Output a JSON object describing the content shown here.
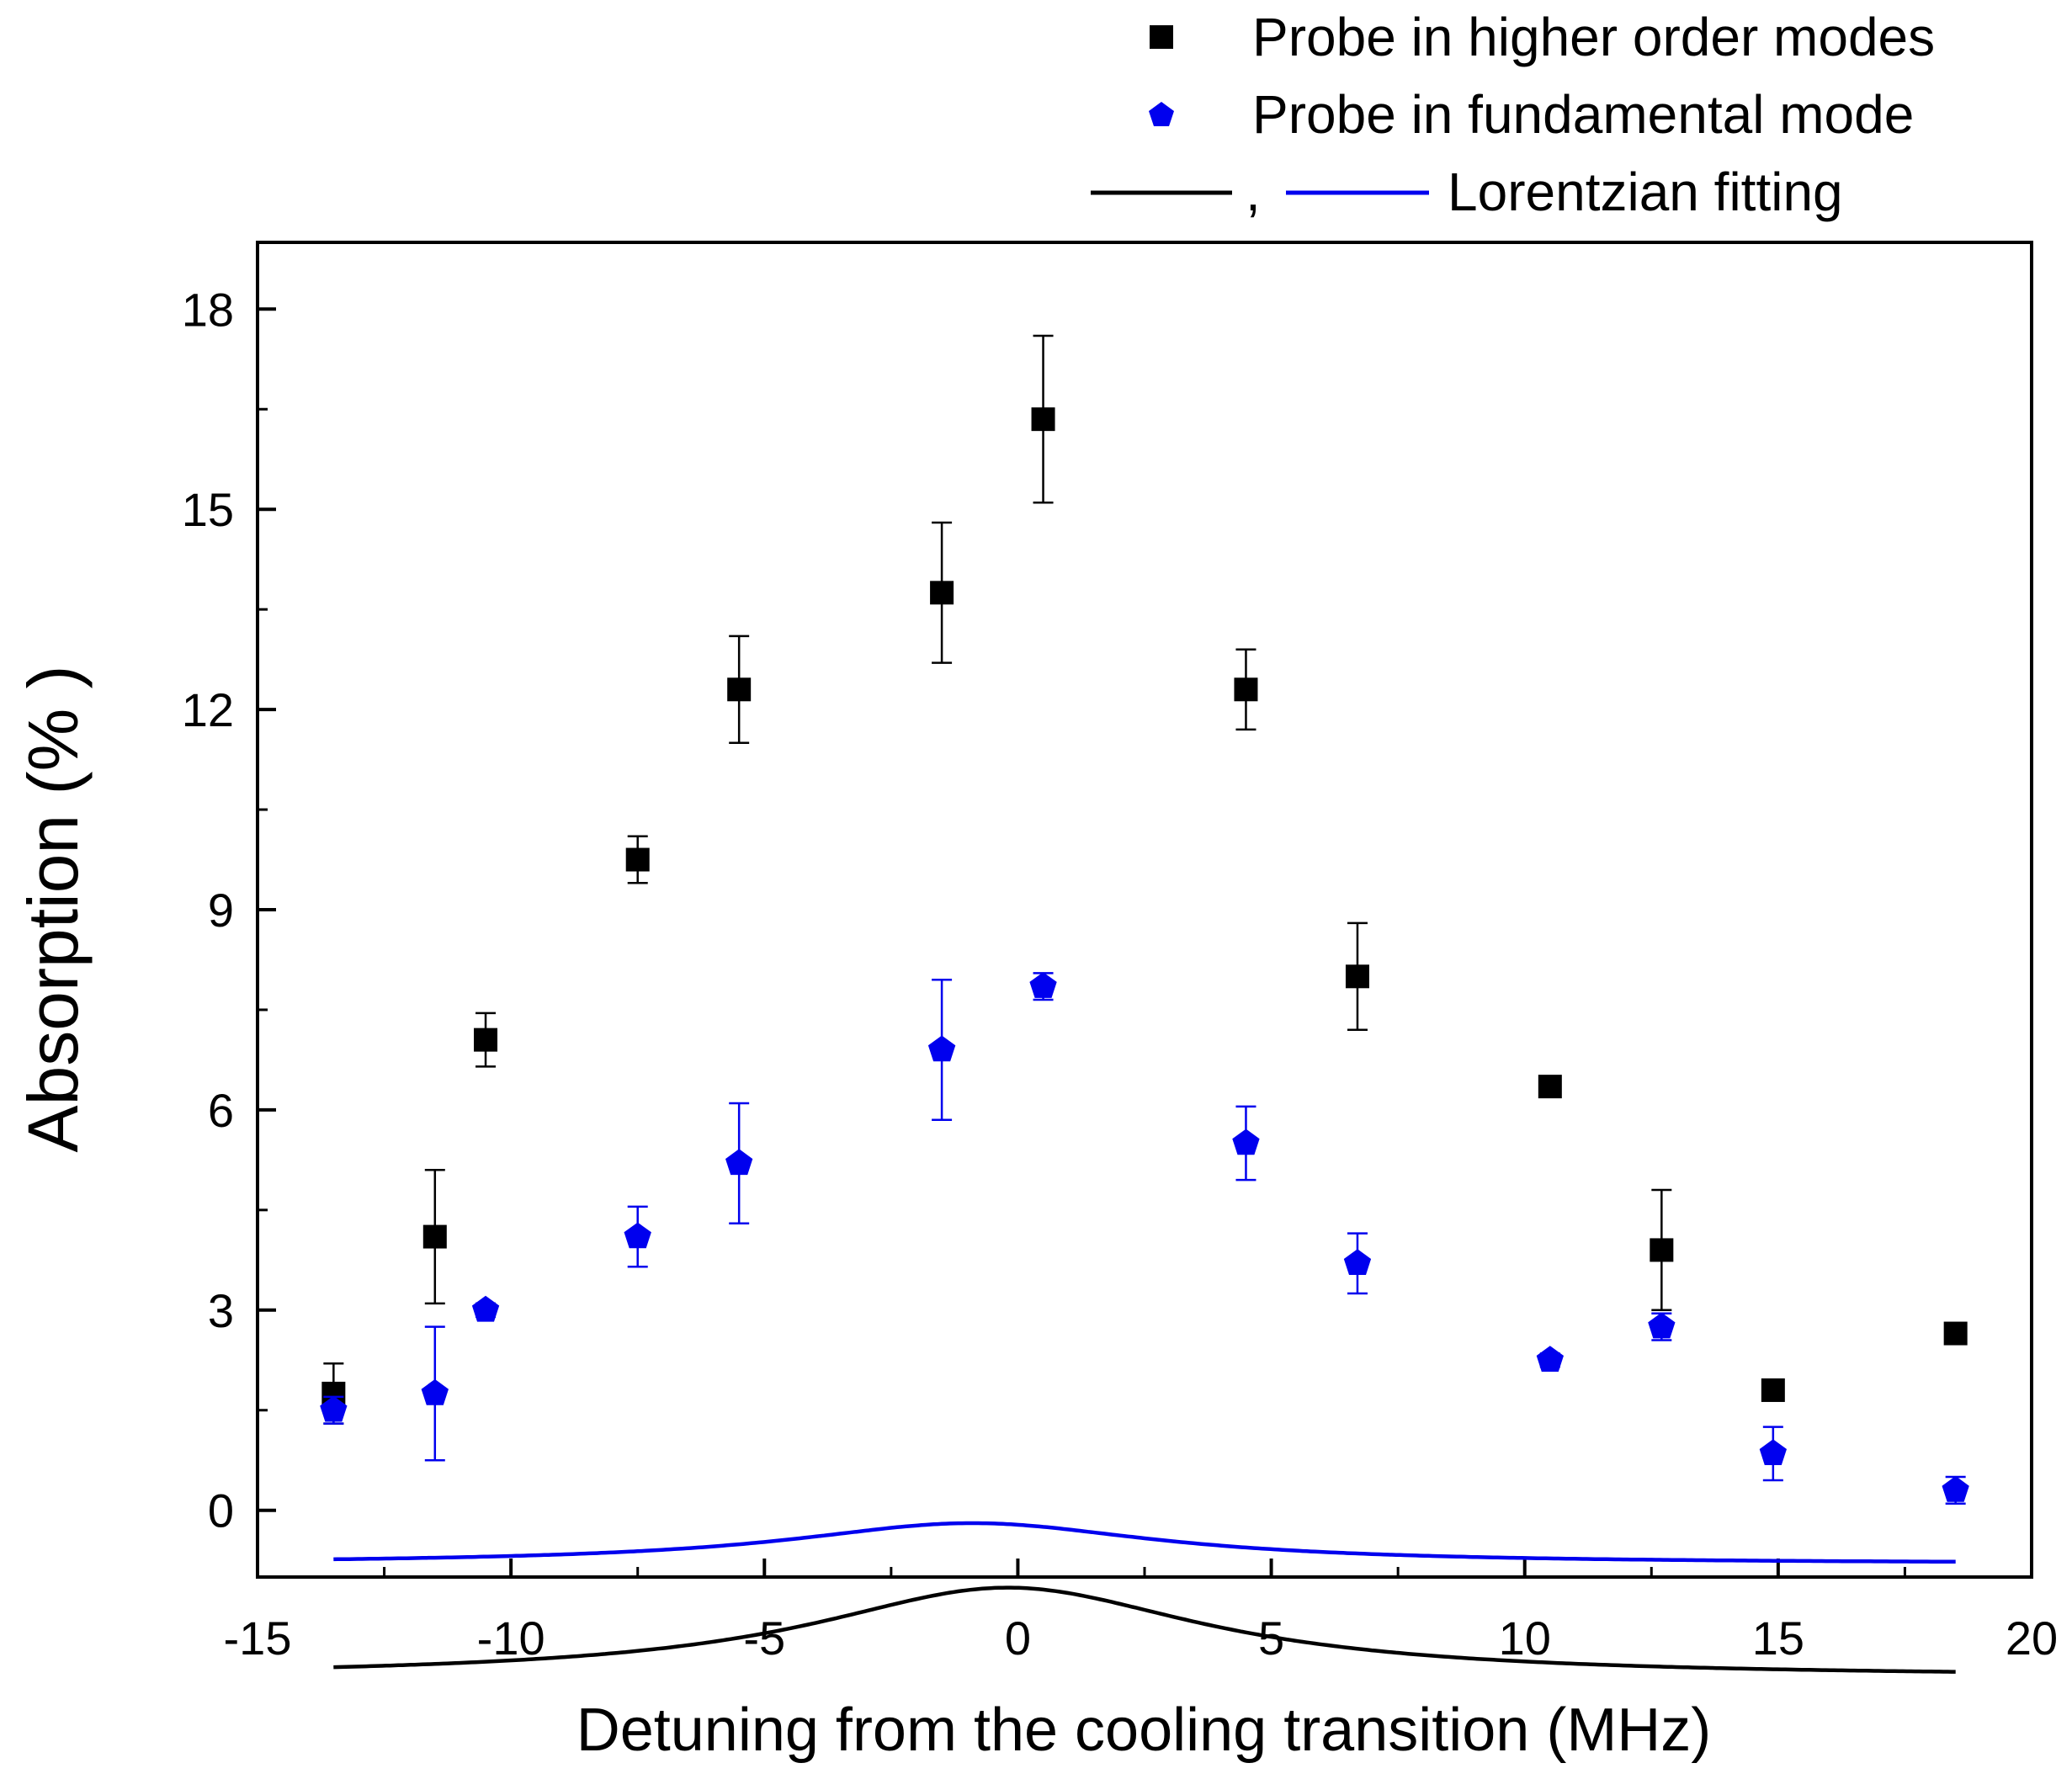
{
  "chart_data": {
    "type": "scatter",
    "xlabel": "Detuning from the cooling transition (MHz)",
    "ylabel": "Absorption (% )",
    "xlim": [
      -15,
      20
    ],
    "ylim": [
      -1,
      19
    ],
    "x_ticks": [
      -15,
      -10,
      -5,
      0,
      5,
      10,
      15,
      20
    ],
    "x_tick_labels": [
      "-15",
      "-10",
      "-5",
      "0",
      "5",
      "10",
      "15",
      "20"
    ],
    "y_ticks": [
      0,
      3,
      6,
      9,
      12,
      15,
      18
    ],
    "y_tick_labels": [
      "0",
      "3",
      "6",
      "9",
      "12",
      "15",
      "18"
    ],
    "grid": false,
    "legend_position": "top-right, outside plot",
    "legend": {
      "series1": "Probe in higher order modes",
      "series2": "Probe in fundamental mode",
      "comma": ",",
      "fit": "Lorentzian fitting"
    },
    "series": [
      {
        "name": "Probe in higher order modes",
        "marker": "square",
        "color": "#000000",
        "points": [
          {
            "x": -13.5,
            "y": 1.75,
            "err": 0.45
          },
          {
            "x": -11.5,
            "y": 4.1,
            "err": 1.0
          },
          {
            "x": -10.5,
            "y": 7.05,
            "err": 0.4
          },
          {
            "x": -7.5,
            "y": 9.75,
            "err": 0.35
          },
          {
            "x": -5.5,
            "y": 12.3,
            "err": 0.8
          },
          {
            "x": -1.5,
            "y": 13.75,
            "err": 1.05
          },
          {
            "x": 0.5,
            "y": 16.35,
            "err": 1.25
          },
          {
            "x": 4.5,
            "y": 12.3,
            "err": 0.6
          },
          {
            "x": 6.7,
            "y": 8.0,
            "err": 0.8
          },
          {
            "x": 10.5,
            "y": 6.35,
            "err": 0.1
          },
          {
            "x": 12.7,
            "y": 3.9,
            "err": 0.9
          },
          {
            "x": 14.9,
            "y": 1.8,
            "err": 0.1
          },
          {
            "x": 18.5,
            "y": 2.65,
            "err": 0.15
          }
        ]
      },
      {
        "name": "Probe in fundamental mode",
        "marker": "pentagon",
        "color": "#0000ee",
        "points": [
          {
            "x": -13.5,
            "y": 1.5,
            "err": 0.2
          },
          {
            "x": -11.5,
            "y": 1.75,
            "err": 1.0
          },
          {
            "x": -10.5,
            "y": 3.0,
            "err": 0.1
          },
          {
            "x": -7.5,
            "y": 4.1,
            "err": 0.45
          },
          {
            "x": -5.5,
            "y": 5.2,
            "err": 0.9
          },
          {
            "x": -1.5,
            "y": 6.9,
            "err": 1.05
          },
          {
            "x": 0.5,
            "y": 7.85,
            "err": 0.2
          },
          {
            "x": 4.5,
            "y": 5.5,
            "err": 0.55
          },
          {
            "x": 6.7,
            "y": 3.7,
            "err": 0.45
          },
          {
            "x": 10.5,
            "y": 2.25,
            "err": 0.1
          },
          {
            "x": 12.7,
            "y": 2.75,
            "err": 0.2
          },
          {
            "x": 14.9,
            "y": 0.85,
            "err": 0.4
          },
          {
            "x": 18.5,
            "y": 0.3,
            "err": 0.2
          }
        ]
      }
    ],
    "fits": [
      {
        "color": "#000000",
        "x_range": [
          -13.5,
          18.5
        ],
        "y0": -2.5,
        "A": 19.8,
        "xc": -0.2,
        "gamma": 9.4
      },
      {
        "color": "#0000ee",
        "x_range": [
          -13.5,
          18.5
        ],
        "y0": -0.8,
        "A": 8.4,
        "xc": -0.9,
        "gamma": 8.8
      }
    ]
  }
}
